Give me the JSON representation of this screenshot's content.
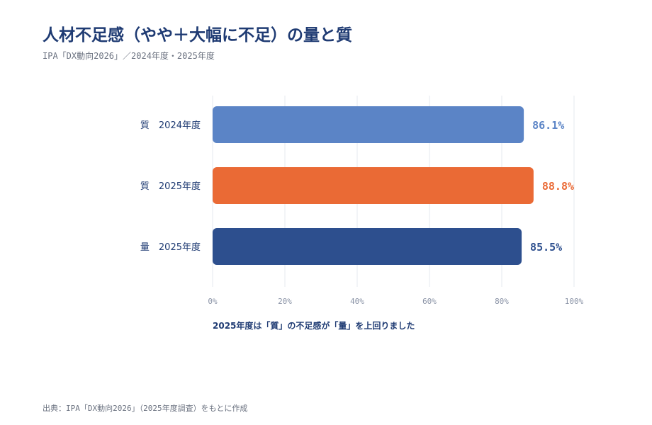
{
  "header": {
    "title": "人材不足感（やや＋大幅に不足）の量と質",
    "subtitle": "IPA「DX動向2026」／2024年度・2025年度"
  },
  "footer": {
    "source": "出典：IPA「DX動向2026」（2025年度調査）をもとに作成"
  },
  "chart_data": {
    "type": "bar",
    "orientation": "horizontal",
    "categories": [
      "質　2024年度",
      "質　2025年度",
      "量　2025年度"
    ],
    "values": [
      86.1,
      88.8,
      85.5
    ],
    "value_labels": [
      "86.1%",
      "88.8%",
      "85.5%"
    ],
    "colors": [
      "#5b84c6",
      "#ea6a35",
      "#2d4f8e"
    ],
    "x_ticks": [
      "0%",
      "20%",
      "40%",
      "60%",
      "80%",
      "100%"
    ],
    "xlim": [
      0,
      100
    ],
    "grid": true,
    "annotation": "2025年度は「質」の不足感が「量」を上回りました"
  }
}
